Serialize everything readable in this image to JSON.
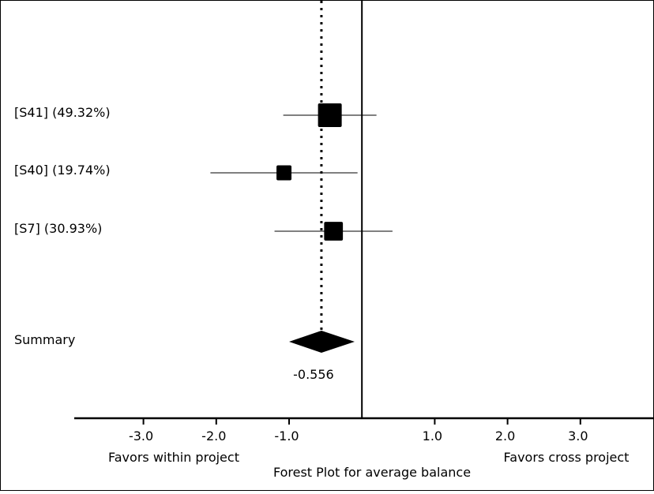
{
  "chart_data": {
    "type": "forest",
    "title": "Forest Plot for average balance",
    "x_left_label": "Favors within project",
    "x_right_label": "Favors cross project",
    "xlim": [
      -3.95,
      4.0
    ],
    "x_ticks": [
      -3.0,
      -2.0,
      -1.0,
      1.0,
      2.0,
      3.0
    ],
    "x_tick_labels": [
      "-3.0",
      "-2.0",
      "-1.0",
      "1.0",
      "2.0",
      "3.0"
    ],
    "reference_line": 0,
    "studies": [
      {
        "label": "[S41] (49.32%)",
        "estimate": -0.44,
        "ci_low": -1.08,
        "ci_high": 0.2,
        "weight": 49.32
      },
      {
        "label": "[S40] (19.74%)",
        "estimate": -1.07,
        "ci_low": -2.08,
        "ci_high": -0.06,
        "weight": 19.74
      },
      {
        "label": "[S7] (30.93%)",
        "estimate": -0.39,
        "ci_low": -1.2,
        "ci_high": 0.42,
        "weight": 30.93
      }
    ],
    "summary": {
      "label": "Summary",
      "estimate": -0.556,
      "estimate_label": "-0.556",
      "ci_low": -1.0,
      "ci_high": -0.1
    }
  }
}
